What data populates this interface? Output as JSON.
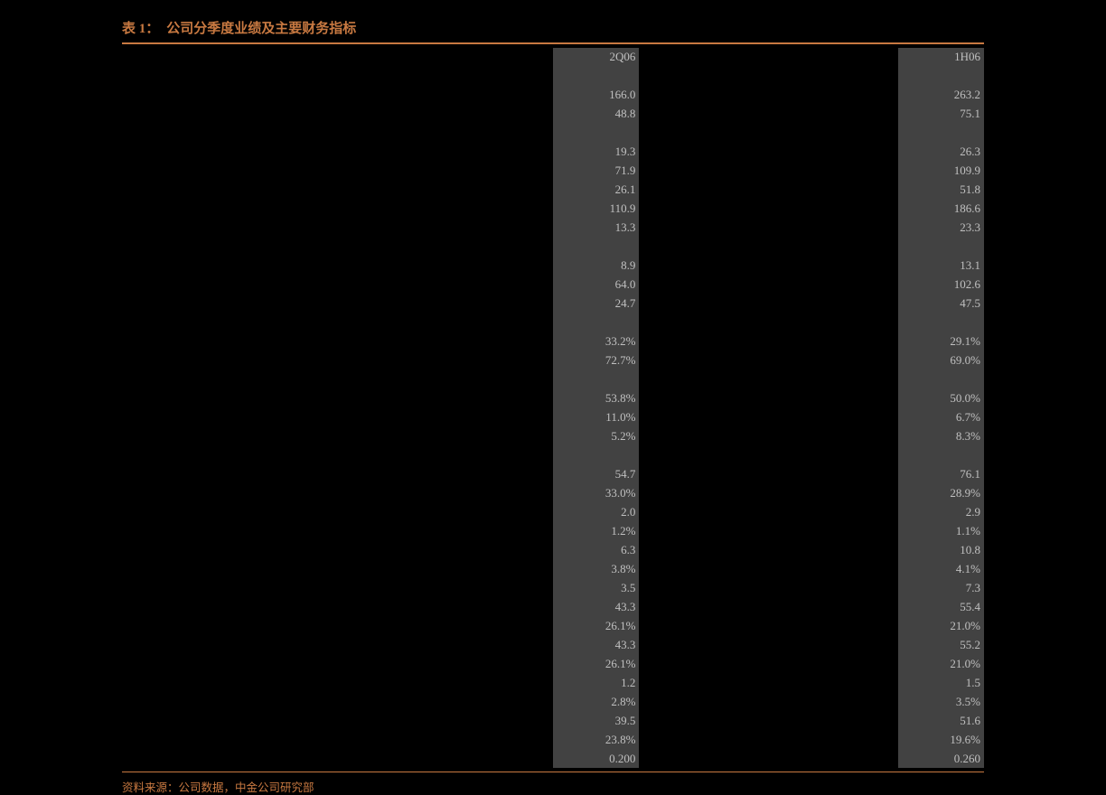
{
  "title": {
    "prefix": "表 1：",
    "text": "公司分季度业绩及主要财务指标"
  },
  "columns": {
    "q": "2Q06",
    "h": "1H06"
  },
  "rows": [
    {
      "q": "",
      "h": ""
    },
    {
      "q": "166.0",
      "h": "263.2"
    },
    {
      "q": "48.8",
      "h": "75.1"
    },
    {
      "q": "",
      "h": ""
    },
    {
      "q": "19.3",
      "h": "26.3"
    },
    {
      "q": "71.9",
      "h": "109.9"
    },
    {
      "q": "26.1",
      "h": "51.8"
    },
    {
      "q": "110.9",
      "h": "186.6"
    },
    {
      "q": "13.3",
      "h": "23.3"
    },
    {
      "q": "",
      "h": ""
    },
    {
      "q": "8.9",
      "h": "13.1"
    },
    {
      "q": "64.0",
      "h": "102.6"
    },
    {
      "q": "24.7",
      "h": "47.5"
    },
    {
      "q": "",
      "h": ""
    },
    {
      "q": "33.2%",
      "h": "29.1%"
    },
    {
      "q": "72.7%",
      "h": "69.0%"
    },
    {
      "q": "",
      "h": ""
    },
    {
      "q": "53.8%",
      "h": "50.0%"
    },
    {
      "q": "11.0%",
      "h": "6.7%"
    },
    {
      "q": "5.2%",
      "h": "8.3%"
    },
    {
      "q": "",
      "h": ""
    },
    {
      "q": "54.7",
      "h": "76.1"
    },
    {
      "q": "33.0%",
      "h": "28.9%"
    },
    {
      "q": "2.0",
      "h": "2.9"
    },
    {
      "q": "1.2%",
      "h": "1.1%"
    },
    {
      "q": "6.3",
      "h": "10.8"
    },
    {
      "q": "3.8%",
      "h": "4.1%"
    },
    {
      "q": "3.5",
      "h": "7.3"
    },
    {
      "q": "43.3",
      "h": "55.4"
    },
    {
      "q": "26.1%",
      "h": "21.0%"
    },
    {
      "q": "43.3",
      "h": "55.2"
    },
    {
      "q": "26.1%",
      "h": "21.0%"
    },
    {
      "q": "1.2",
      "h": "1.5"
    },
    {
      "q": "2.8%",
      "h": "3.5%"
    },
    {
      "q": "39.5",
      "h": "51.6"
    },
    {
      "q": "23.8%",
      "h": "19.6%"
    },
    {
      "q": "0.200",
      "h": "0.260"
    }
  ],
  "source": "资料来源：公司数据，中金公司研究部",
  "style": {
    "bg": "#000000",
    "accent": "#c87941",
    "shaded": "#424242",
    "text": "#c0c0c0"
  }
}
